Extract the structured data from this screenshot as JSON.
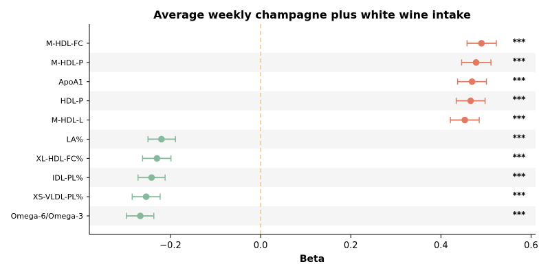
{
  "chart_data": {
    "type": "scatter",
    "title": "Average weekly champagne plus white wine intake",
    "xlabel": "Beta",
    "ylabel": "",
    "xlim": [
      -0.38,
      0.61
    ],
    "xticks": [
      -0.2,
      0.0,
      0.2,
      0.4,
      0.6
    ],
    "xtick_labels": [
      "−0.2",
      "0.0",
      "0.2",
      "0.4",
      "0.6"
    ],
    "reference_line": 0.0,
    "reference_line_color": "#f5c77e",
    "positive_color": "#e07b63",
    "negative_color": "#86b89c",
    "band_color": "#f5f5f5",
    "grid": false,
    "points": [
      {
        "label": "M-HDL-FC",
        "beta": 0.49,
        "ci_low": 0.458,
        "ci_high": 0.523,
        "sig": "***"
      },
      {
        "label": "M-HDL-P",
        "beta": 0.478,
        "ci_low": 0.446,
        "ci_high": 0.511,
        "sig": "***"
      },
      {
        "label": "ApoA1",
        "beta": 0.469,
        "ci_low": 0.437,
        "ci_high": 0.501,
        "sig": "***"
      },
      {
        "label": "HDL-P",
        "beta": 0.466,
        "ci_low": 0.434,
        "ci_high": 0.498,
        "sig": "***"
      },
      {
        "label": "M-HDL-L",
        "beta": 0.453,
        "ci_low": 0.421,
        "ci_high": 0.485,
        "sig": "***"
      },
      {
        "label": "LA%",
        "beta": -0.22,
        "ci_low": -0.25,
        "ci_high": -0.189,
        "sig": "***"
      },
      {
        "label": "XL-HDL-FC%",
        "beta": -0.23,
        "ci_low": -0.262,
        "ci_high": -0.199,
        "sig": "***"
      },
      {
        "label": "IDL-PL%",
        "beta": -0.242,
        "ci_low": -0.272,
        "ci_high": -0.212,
        "sig": "***"
      },
      {
        "label": "XS-VLDL-PL%",
        "beta": -0.254,
        "ci_low": -0.285,
        "ci_high": -0.223,
        "sig": "***"
      },
      {
        "label": "Omega-6/Omega-3",
        "beta": -0.267,
        "ci_low": -0.298,
        "ci_high": -0.237,
        "sig": "***"
      }
    ]
  }
}
